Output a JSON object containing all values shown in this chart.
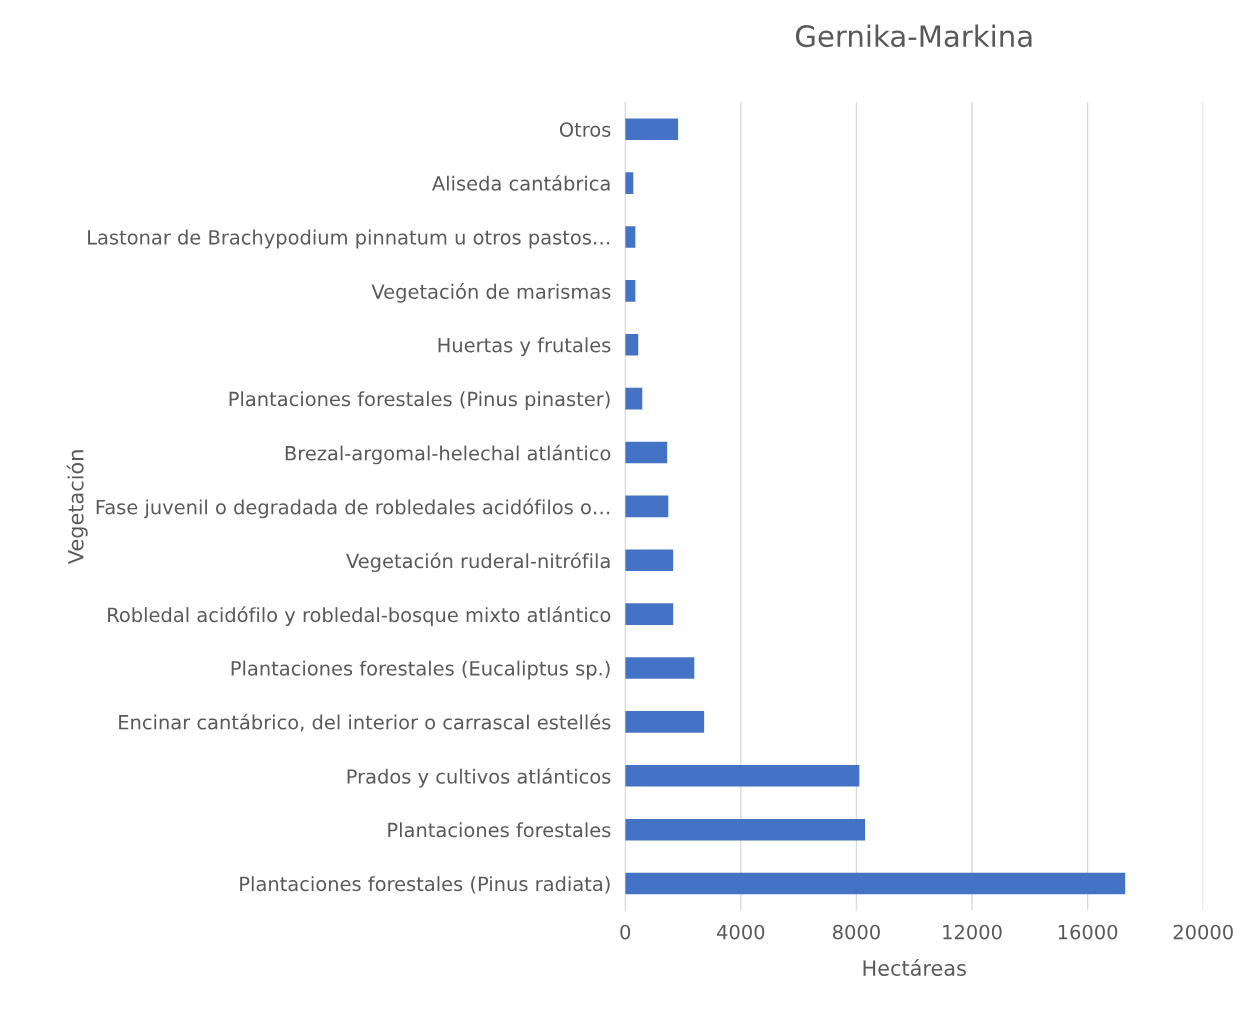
{
  "chart_data": {
    "type": "bar",
    "orientation": "horizontal",
    "title": "Gernika-Markina",
    "xlabel": "Hectáreas",
    "ylabel": "Vegetación",
    "categories": [
      "Otros",
      "Aliseda cantábrica",
      "Lastonar de Brachypodium pinnatum u otros pastos…",
      "Vegetación de marismas",
      "Huertas y frutales",
      "Plantaciones forestales (Pinus pinaster)",
      "Brezal-argomal-helechal atlántico",
      "Fase juvenil o degradada de robledales acidófilos o…",
      "Vegetación ruderal-nitrófila",
      "Robledal acidófilo y robledal-bosque mixto atlántico",
      "Plantaciones forestales (Eucaliptus sp.)",
      "Encinar cantábrico, del interior o carrascal estellés",
      "Prados y cultivos atlánticos",
      "Plantaciones forestales",
      "Plantaciones forestales (Pinus radiata)"
    ],
    "values": [
      1830,
      280,
      350,
      350,
      450,
      590,
      1450,
      1490,
      1660,
      1660,
      2390,
      2730,
      8100,
      8300,
      17300
    ],
    "color": "#4472c4",
    "xlim": [
      0,
      20000
    ],
    "xticks": [
      0,
      4000,
      8000,
      12000,
      16000,
      20000
    ],
    "grid": "x",
    "legend": false
  }
}
